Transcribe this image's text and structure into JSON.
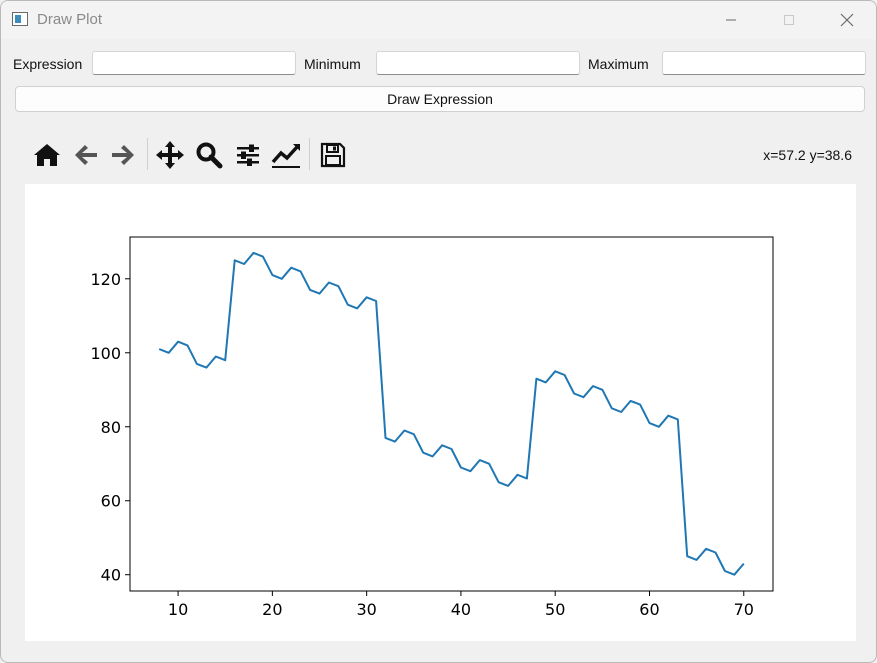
{
  "window": {
    "title": "Draw Plot"
  },
  "form": {
    "expression_label": "Expression",
    "expression_value": "",
    "minimum_label": "Minimum",
    "minimum_value": "",
    "maximum_label": "Maximum",
    "maximum_value": "",
    "draw_button_label": "Draw Expression"
  },
  "toolbar": {
    "icons": [
      "home-icon",
      "back-arrow-icon",
      "forward-arrow-icon",
      "pan-icon",
      "zoom-icon",
      "subplots-config-icon",
      "edit-axes-icon",
      "save-icon"
    ],
    "coordinates": "x=57.2 y=38.6"
  },
  "colors": {
    "line": "#1f77b4"
  },
  "chart_data": {
    "type": "line",
    "title": "",
    "xlabel": "",
    "ylabel": "",
    "xlim": [
      4.9,
      73.1
    ],
    "ylim": [
      35.6,
      131.3
    ],
    "xticks": [
      10,
      20,
      30,
      40,
      50,
      60,
      70
    ],
    "yticks": [
      40,
      60,
      80,
      100,
      120
    ],
    "grid": false,
    "x": [
      8,
      9,
      10,
      11,
      12,
      13,
      14,
      15,
      16,
      17,
      18,
      19,
      20,
      21,
      22,
      23,
      24,
      25,
      26,
      27,
      28,
      29,
      30,
      31,
      32,
      33,
      34,
      35,
      36,
      37,
      38,
      39,
      40,
      41,
      42,
      43,
      44,
      45,
      46,
      47,
      48,
      49,
      50,
      51,
      52,
      53,
      54,
      55,
      56,
      57,
      58,
      59,
      60,
      61,
      62,
      63,
      64,
      65,
      66,
      67,
      68,
      69,
      70
    ],
    "series": [
      {
        "values": [
          101,
          100,
          103,
          102,
          97,
          96,
          99,
          98,
          125,
          124,
          127,
          126,
          121,
          120,
          123,
          122,
          117,
          116,
          119,
          118,
          113,
          112,
          115,
          114,
          77,
          76,
          79,
          78,
          73,
          72,
          75,
          74,
          69,
          68,
          71,
          70,
          65,
          64,
          67,
          66,
          93,
          92,
          95,
          94,
          89,
          88,
          91,
          90,
          85,
          84,
          87,
          86,
          81,
          80,
          83,
          82,
          45,
          44,
          47,
          46,
          41,
          40,
          43
        ]
      }
    ]
  }
}
